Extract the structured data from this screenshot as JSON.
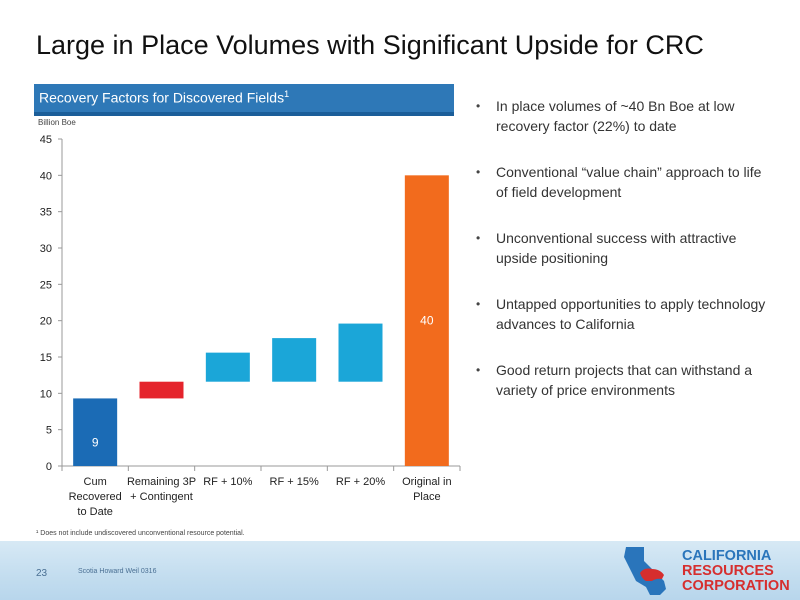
{
  "slide": {
    "title": "Large in Place Volumes with Significant Upside for CRC",
    "chart_header": "Recovery Factors for Discovered Fields",
    "chart_header_sup": "1",
    "unit_label": "Billion Boe",
    "footnote": "¹ Does not include undiscovered unconventional resource potential.",
    "page_number": "23",
    "footer_text": "Scotia Howard Weil 0316"
  },
  "bullets": [
    "In place volumes of ~40 Bn Boe at low recovery factor (22%) to date",
    "Conventional “value chain” approach to life of field development",
    "Unconventional success with attractive upside positioning",
    "Untapped opportunities to apply technology advances to California",
    "Good return projects that can withstand a variety of price environments"
  ],
  "logo": {
    "line1": "CALIFORNIA",
    "line2": "RESOURCES",
    "line3": "CORPORATION"
  },
  "colors": {
    "header_blue": "#2e78b7",
    "cum_blue": "#1b6bb5",
    "red": "#e5242c",
    "light_blue": "#1ba6d8",
    "orange": "#f26b1d",
    "logo_blue": "#2a75bb",
    "logo_red": "#d62e2e"
  },
  "chart_data": {
    "type": "bar",
    "subtype": "waterfall",
    "categories": [
      [
        "Cum",
        "Recovered",
        "to Date"
      ],
      [
        "Remaining 3P",
        "+ Contingent"
      ],
      [
        "RF + 10%"
      ],
      [
        "RF + 15%"
      ],
      [
        "RF + 20%"
      ],
      [
        "Original in",
        "Place"
      ]
    ],
    "bars": [
      {
        "base": 0,
        "top": 9.3,
        "label": "9",
        "color": "#1b6bb5"
      },
      {
        "base": 9.3,
        "top": 11.6,
        "label": "",
        "color": "#e5242c"
      },
      {
        "base": 11.6,
        "top": 15.6,
        "label": "",
        "color": "#1ba6d8"
      },
      {
        "base": 11.6,
        "top": 17.6,
        "label": "",
        "color": "#1ba6d8"
      },
      {
        "base": 11.6,
        "top": 19.6,
        "label": "",
        "color": "#1ba6d8"
      },
      {
        "base": 0,
        "top": 40,
        "label": "40",
        "color": "#f26b1d"
      }
    ],
    "y_ticks": [
      0,
      5,
      10,
      15,
      20,
      25,
      30,
      35,
      40,
      45
    ],
    "ylim": [
      0,
      45
    ],
    "ylabel": "Billion Boe",
    "grid": false,
    "legend": "none"
  }
}
